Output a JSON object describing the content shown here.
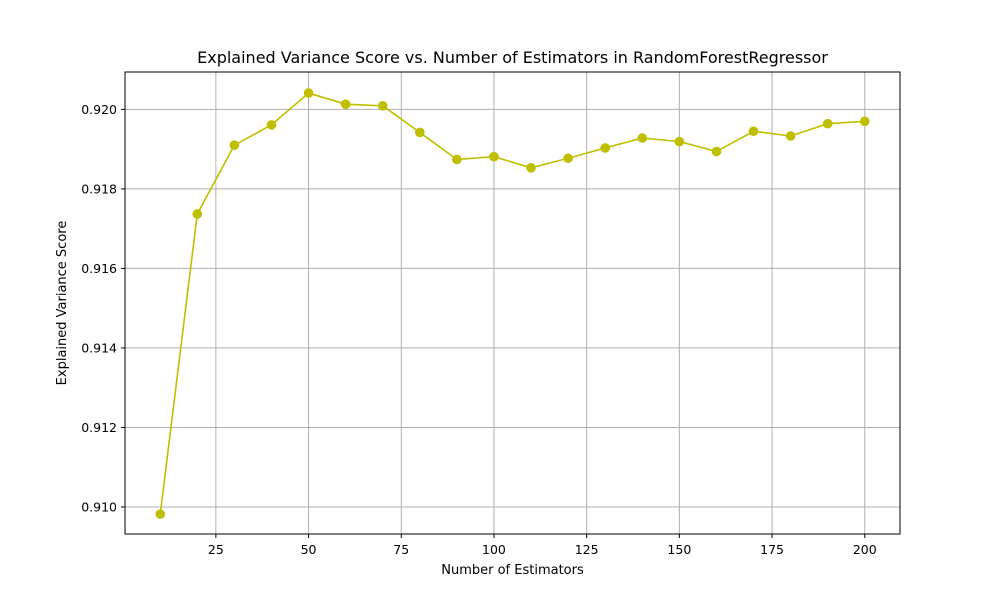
{
  "chart_data": {
    "type": "line",
    "title": "Explained Variance Score vs. Number of Estimators in RandomForestRegressor",
    "xlabel": "Number of Estimators",
    "ylabel": "Explained Variance Score",
    "grid": true,
    "xlim": [
      0.5,
      209.5
    ],
    "ylim": [
      0.90932,
      0.92094
    ],
    "x_ticks": [
      25,
      50,
      75,
      100,
      125,
      150,
      175,
      200
    ],
    "x_tick_labels": [
      "25",
      "50",
      "75",
      "100",
      "125",
      "150",
      "175",
      "200"
    ],
    "y_ticks": [
      0.91,
      0.912,
      0.914,
      0.916,
      0.918,
      0.92
    ],
    "y_tick_labels": [
      "0.910",
      "0.912",
      "0.914",
      "0.916",
      "0.918",
      "0.920"
    ],
    "series": [
      {
        "name": "Explained Variance Score",
        "color": "#bfbf00",
        "marker": "circle",
        "x": [
          10,
          20,
          30,
          40,
          50,
          60,
          70,
          80,
          90,
          100,
          110,
          120,
          130,
          140,
          150,
          160,
          170,
          180,
          190,
          200
        ],
        "values": [
          0.90982,
          0.91737,
          0.9191,
          0.91961,
          0.92041,
          0.92013,
          0.92009,
          0.91942,
          0.91874,
          0.91881,
          0.91853,
          0.91877,
          0.91903,
          0.91928,
          0.91919,
          0.91894,
          0.91945,
          0.91933,
          0.91964,
          0.9197
        ]
      }
    ]
  }
}
